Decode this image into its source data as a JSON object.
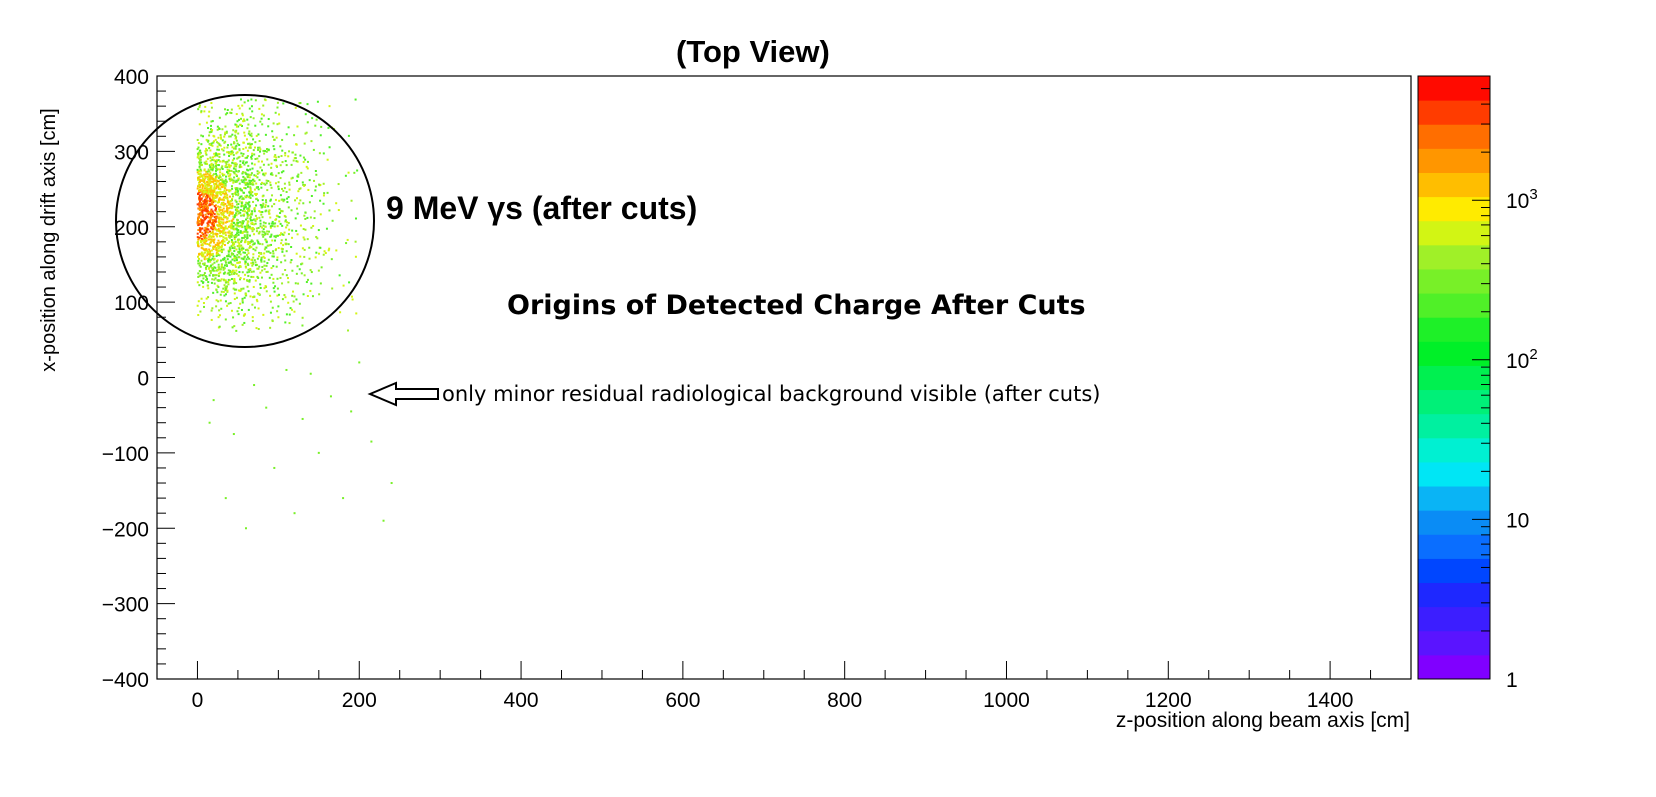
{
  "chart_data": {
    "type": "heatmap",
    "title": "(Top View)",
    "xlabel": "z-position along beam axis  [cm]",
    "ylabel": "x-position along drift axis  [cm]",
    "xlim": [
      -50,
      1500
    ],
    "ylim": [
      -400,
      400
    ],
    "x_ticks": [
      "0",
      "200",
      "400",
      "600",
      "800",
      "1000",
      "1200",
      "1400"
    ],
    "y_ticks": [
      "−400",
      "−300",
      "−200",
      "−100",
      "0",
      "100",
      "200",
      "300",
      "400"
    ],
    "colorbar": {
      "scale": "log",
      "range": [
        1,
        6000
      ],
      "tick_labels": [
        "1",
        "10",
        "10^2",
        "10^3"
      ],
      "colors": [
        "#8000ff",
        "#5a14ff",
        "#3c1eff",
        "#1e28ff",
        "#0046ff",
        "#0a6eff",
        "#0a8cf5",
        "#0ab4f5",
        "#00e6f5",
        "#00f0d2",
        "#00f0a0",
        "#00f078",
        "#00f050",
        "#00f028",
        "#1ef028",
        "#50f028",
        "#78f028",
        "#a0f028",
        "#d2f514",
        "#ffeb00",
        "#ffbe00",
        "#ff9600",
        "#ff6e00",
        "#ff3c00",
        "#ff0a00"
      ]
    },
    "signal_region": {
      "z_range": [
        0,
        200
      ],
      "x_center": 215,
      "x_spread": 55,
      "peak_color": "#ff3c00"
    },
    "sparse_background_points": [
      {
        "z": 20,
        "x": -30
      },
      {
        "z": 45,
        "x": -75
      },
      {
        "z": 70,
        "x": -10
      },
      {
        "z": 95,
        "x": -120
      },
      {
        "z": 110,
        "x": 10
      },
      {
        "z": 130,
        "x": -55
      },
      {
        "z": 150,
        "x": -100
      },
      {
        "z": 165,
        "x": -25
      },
      {
        "z": 180,
        "x": -160
      },
      {
        "z": 200,
        "x": 20
      },
      {
        "z": 215,
        "x": -85
      },
      {
        "z": 240,
        "x": -140
      },
      {
        "z": 60,
        "x": -200
      },
      {
        "z": 35,
        "x": -160
      },
      {
        "z": 120,
        "x": -180
      },
      {
        "z": 230,
        "x": -190
      },
      {
        "z": 15,
        "x": -60
      },
      {
        "z": 85,
        "x": -40
      },
      {
        "z": 140,
        "x": 5
      },
      {
        "z": 190,
        "x": -45
      }
    ],
    "annotations": {
      "main": "9 MeV  γs (after cuts)",
      "subtitle": "Origins of Detected Charge After Cuts",
      "arrow_text": "only minor residual radiological background visible (after cuts)"
    }
  }
}
